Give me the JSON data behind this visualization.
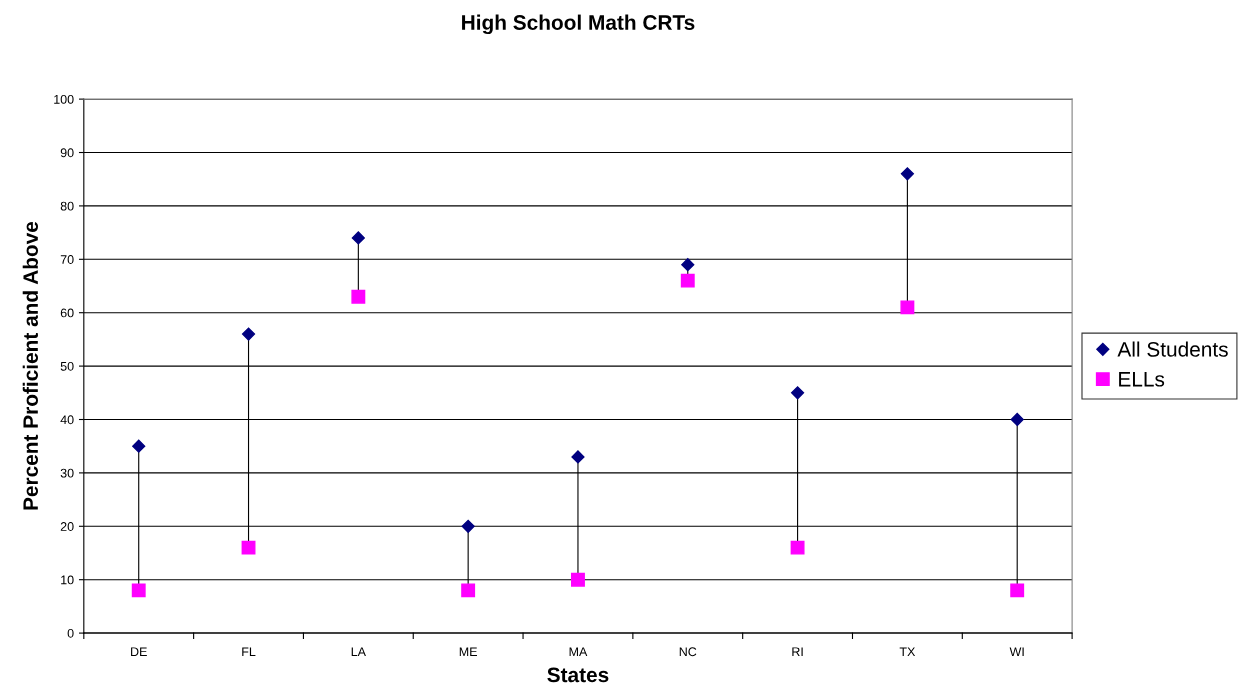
{
  "chart_data": {
    "type": "scatter",
    "title": "High School Math CRTs",
    "xlabel": "States",
    "ylabel": "Percent Proficient and Above",
    "categories": [
      "DE",
      "FL",
      "LA",
      "ME",
      "MA",
      "NC",
      "RI",
      "TX",
      "WI"
    ],
    "series": [
      {
        "name": "All Students",
        "color": "#000080",
        "marker": "diamond",
        "values": [
          35,
          56,
          74,
          20,
          33,
          69,
          45,
          86,
          40
        ]
      },
      {
        "name": "ELLs",
        "color": "#ff00ff",
        "marker": "square",
        "values": [
          8,
          16,
          63,
          8,
          10,
          66,
          16,
          61,
          8
        ]
      }
    ],
    "ylim": [
      0,
      100
    ],
    "yticks": [
      0,
      10,
      20,
      30,
      40,
      50,
      60,
      70,
      80,
      90,
      100
    ],
    "grid": "y",
    "legend": "right"
  }
}
